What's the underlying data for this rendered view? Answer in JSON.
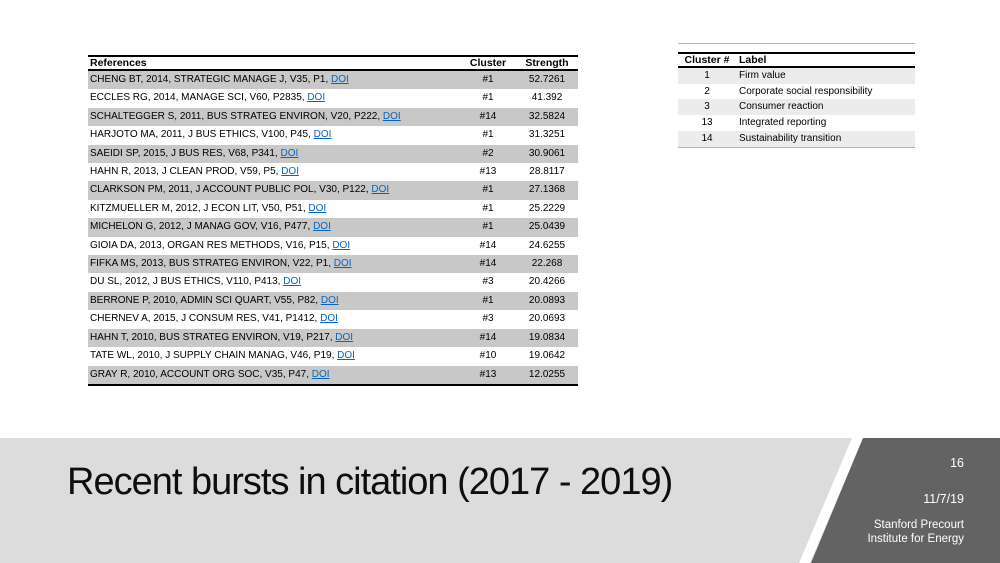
{
  "slide": {
    "title": "Recent bursts in citation (2017 - 2019)"
  },
  "refs_table": {
    "headers": [
      "References",
      "Cluster",
      "Strength"
    ],
    "link_label": "DOI",
    "rows": [
      {
        "reference": "CHENG BT, 2014, STRATEGIC MANAGE J, V35, P1,",
        "link": "DOI",
        "cluster": "#1",
        "strength": "52.7261"
      },
      {
        "reference": "ECCLES RG, 2014, MANAGE SCI, V60, P2835,",
        "link": "DOI",
        "cluster": "#1",
        "strength": "41.392"
      },
      {
        "reference": "SCHALTEGGER S, 2011, BUS STRATEG ENVIRON, V20, P222,",
        "link": "DOI",
        "cluster": "#14",
        "strength": "32.5824"
      },
      {
        "reference": "HARJOTO MA, 2011, J BUS ETHICS, V100, P45,",
        "link": "DOI",
        "cluster": "#1",
        "strength": "31.3251"
      },
      {
        "reference": "SAEIDI SP, 2015, J BUS RES, V68, P341,",
        "link": "DOI",
        "cluster": "#2",
        "strength": "30.9061"
      },
      {
        "reference": "HAHN R, 2013, J CLEAN PROD, V59, P5,",
        "link": "DOI",
        "cluster": "#13",
        "strength": "28.8117"
      },
      {
        "reference": "CLARKSON PM, 2011, J ACCOUNT PUBLIC POL, V30, P122,",
        "link": "DOI",
        "cluster": "#1",
        "strength": "27.1368"
      },
      {
        "reference": "KITZMUELLER M, 2012, J ECON LIT, V50, P51,",
        "link": "DOI",
        "cluster": "#1",
        "strength": "25.2229"
      },
      {
        "reference": "MICHELON G, 2012, J MANAG GOV, V16, P477,",
        "link": "DOI",
        "cluster": "#1",
        "strength": "25.0439"
      },
      {
        "reference": "GIOIA DA, 2013, ORGAN RES METHODS, V16, P15,",
        "link": "DOI",
        "cluster": "#14",
        "strength": "24.6255"
      },
      {
        "reference": "FIFKA MS, 2013, BUS STRATEG ENVIRON, V22, P1,",
        "link": "DOI",
        "cluster": "#14",
        "strength": "22.268"
      },
      {
        "reference": "DU SL, 2012, J BUS ETHICS, V110, P413,",
        "link": "DOI",
        "cluster": "#3",
        "strength": "20.4266"
      },
      {
        "reference": "BERRONE P, 2010, ADMIN SCI QUART, V55, P82,",
        "link": "DOI",
        "cluster": "#1",
        "strength": "20.0893"
      },
      {
        "reference": "CHERNEV A, 2015, J CONSUM RES, V41, P1412,",
        "link": "DOI",
        "cluster": "#3",
        "strength": "20.0693"
      },
      {
        "reference": "HAHN T, 2010, BUS STRATEG ENVIRON, V19, P217,",
        "link": "DOI",
        "cluster": "#14",
        "strength": "19.0834"
      },
      {
        "reference": "TATE WL, 2010, J SUPPLY CHAIN MANAG, V46, P19,",
        "link": "DOI",
        "cluster": "#10",
        "strength": "19.0642"
      },
      {
        "reference": "GRAY R, 2010, ACCOUNT ORG SOC, V35, P47,",
        "link": "DOI",
        "cluster": "#13",
        "strength": "12.0255"
      }
    ]
  },
  "cluster_table": {
    "headers": [
      "Cluster #",
      "Label"
    ],
    "rows": [
      {
        "number": "1",
        "label": "Firm value"
      },
      {
        "number": "2",
        "label": "Corporate social responsibility"
      },
      {
        "number": "3",
        "label": "Consumer reaction"
      },
      {
        "number": "13",
        "label": "Integrated reporting"
      },
      {
        "number": "14",
        "label": "Sustainability transition"
      }
    ]
  },
  "footer": {
    "page_number": "16",
    "date": "11/7/19",
    "organization": "Stanford Precourt Institute for Energy"
  },
  "colors": {
    "band": "#dcdcdc",
    "corner": "#636363",
    "row_stripe": "#c8c8c8",
    "legend_stripe": "#ececec",
    "link": "#0563c1"
  }
}
